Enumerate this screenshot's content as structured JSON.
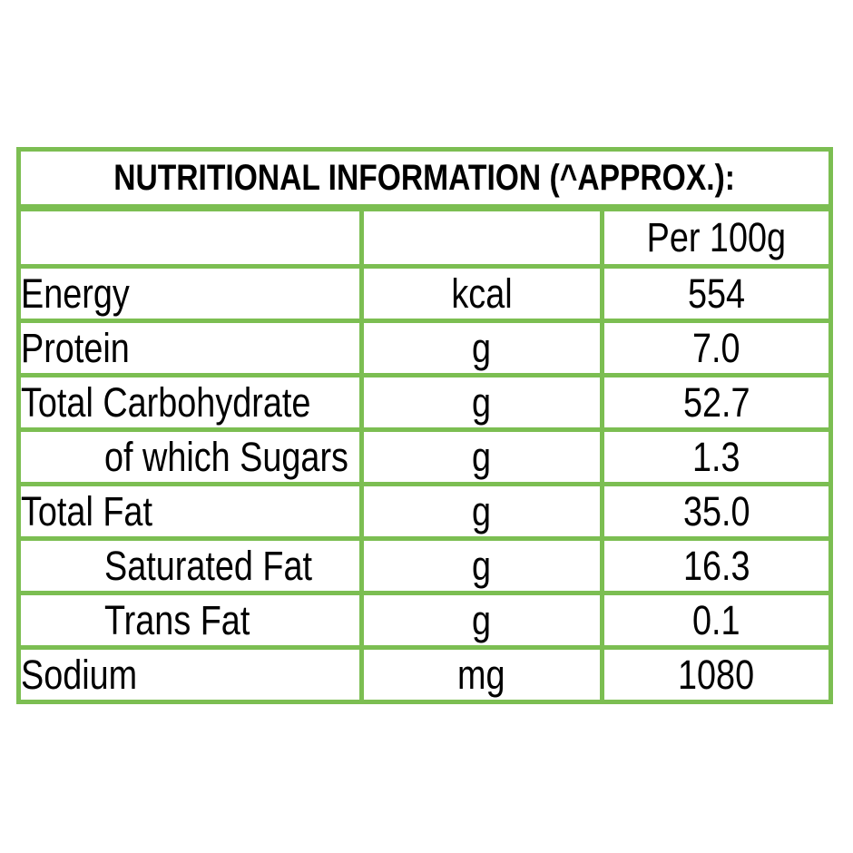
{
  "label": {
    "title": "NUTRITIONAL INFORMATION (^APPROX.):",
    "header": {
      "per_column": "Per 100g"
    },
    "rows": [
      {
        "name": "Energy",
        "unit": "kcal",
        "per_100g": "554",
        "indented": false
      },
      {
        "name": "Protein",
        "unit": "g",
        "per_100g": "7.0",
        "indented": false
      },
      {
        "name": "Total Carbohydrate",
        "unit": "g",
        "per_100g": "52.7",
        "indented": false
      },
      {
        "name": "of which Sugars",
        "unit": "g",
        "per_100g": "1.3",
        "indented": true
      },
      {
        "name": "Total Fat",
        "unit": "g",
        "per_100g": "35.0",
        "indented": false
      },
      {
        "name": "Saturated Fat",
        "unit": "g",
        "per_100g": "16.3",
        "indented": true
      },
      {
        "name": "Trans Fat",
        "unit": "g",
        "per_100g": "0.1",
        "indented": true
      },
      {
        "name": "Sodium",
        "unit": "mg",
        "per_100g": "1080",
        "indented": false
      }
    ],
    "colors": {
      "border_green": "#7CBE52",
      "text": "#000000",
      "background": "#FFFFFF"
    }
  }
}
